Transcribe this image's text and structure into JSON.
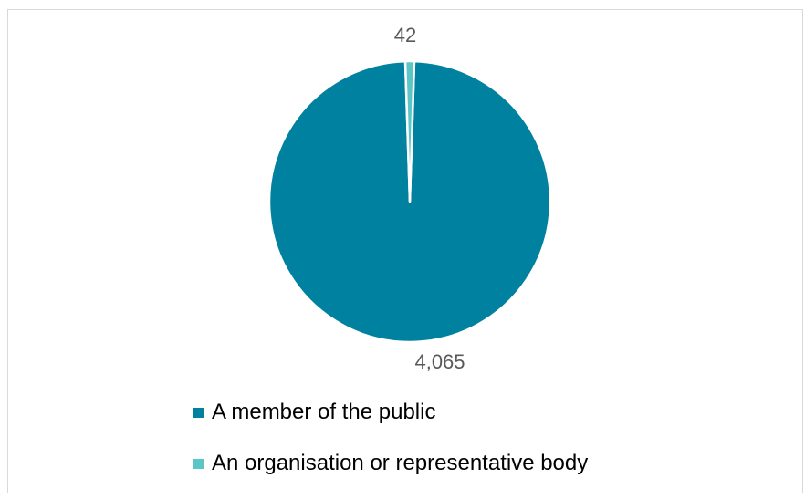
{
  "chart_data": {
    "type": "pie",
    "title": "",
    "categories": [
      "A member of the public",
      "An organisation or representative body"
    ],
    "values": [
      4065,
      42
    ],
    "data_labels": [
      "4,065",
      "42"
    ],
    "colors": [
      "#00819f",
      "#5bc6c6"
    ],
    "legend_position": "bottom",
    "start_angle_deg": 0,
    "direction": "clockwise"
  },
  "legend": {
    "items": [
      {
        "label": "A member of the public",
        "color": "#00819f"
      },
      {
        "label": "An organisation or representative body",
        "color": "#5bc6c6"
      }
    ]
  }
}
